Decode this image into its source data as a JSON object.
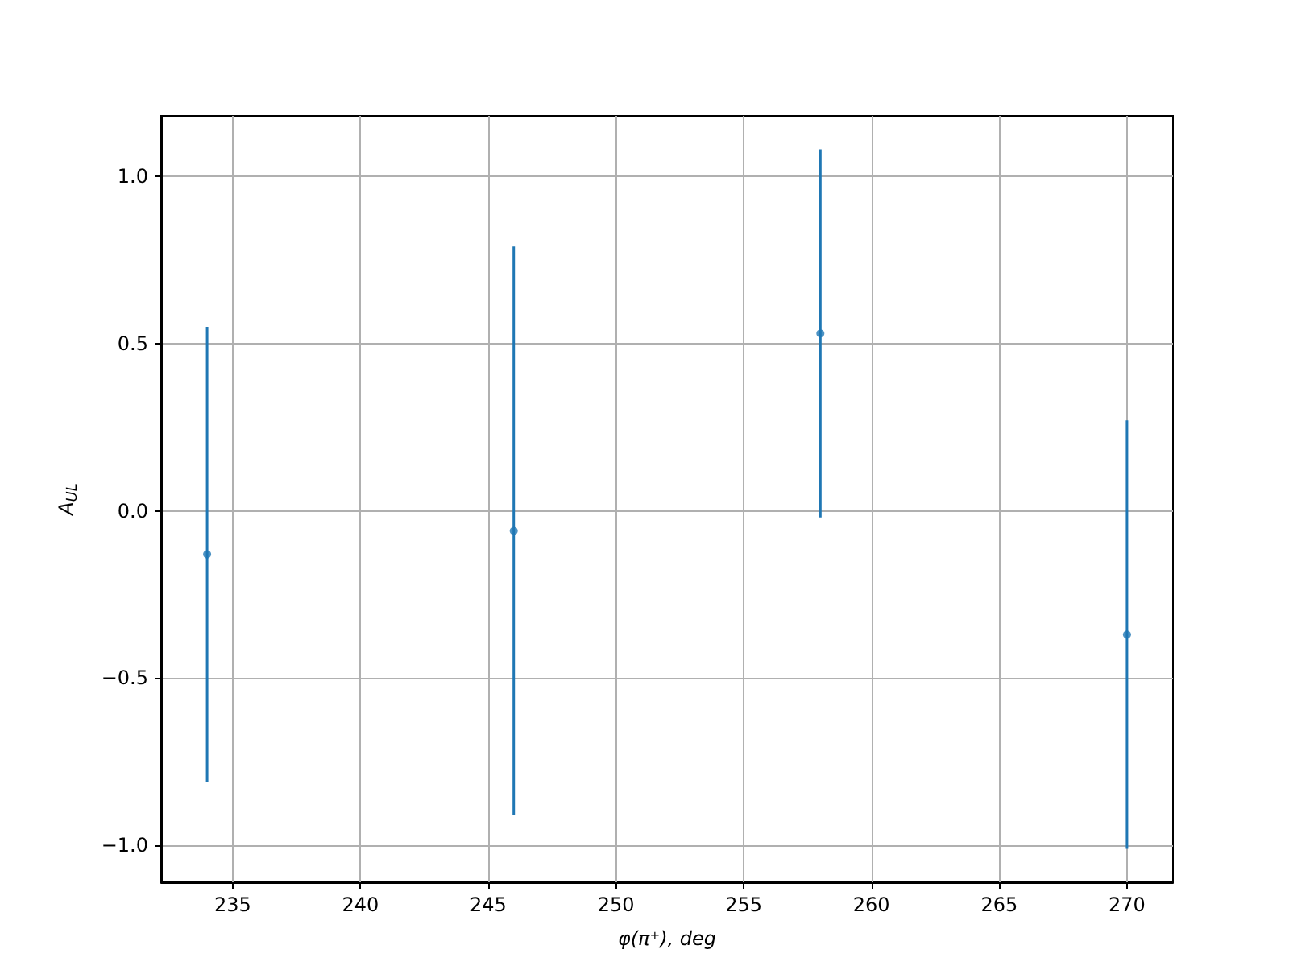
{
  "chart_data": {
    "type": "scatter",
    "xlabel": "φ(π⁺), deg",
    "ylabel": "A$_{UL}$",
    "x": [
      234,
      246,
      258,
      270
    ],
    "series": [
      {
        "color": "#1f77b4",
        "values": [
          -0.13,
          -0.06,
          0.53,
          -0.37
        ],
        "errors": [
          0.68,
          0.85,
          0.55,
          0.64
        ]
      }
    ],
    "xlim": [
      232.2,
      271.8
    ],
    "xticks": [
      235,
      240,
      245,
      250,
      255,
      260,
      265,
      270
    ],
    "ylim": [
      -1.11,
      1.18
    ],
    "yticks": [
      {
        "value": -1,
        "label": "−1.0"
      },
      {
        "value": -0.5,
        "label": "−0.5"
      },
      {
        "value": 0,
        "label": "0.0"
      },
      {
        "value": 0.5,
        "label": "0.5"
      },
      {
        "value": 1,
        "label": "1.0"
      }
    ],
    "grid": true,
    "marker": "circle"
  }
}
